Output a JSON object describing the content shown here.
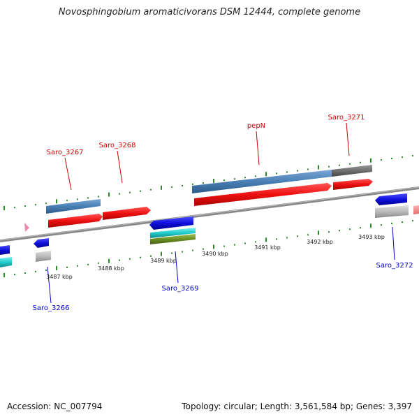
{
  "title": "Novosphingobium aromaticivorans DSM 12444, complete genome",
  "footer": {
    "accession": "Accession: NC_007794",
    "summary": "Topology: circular; Length: 3,561,584 bp; Genes: 3,397"
  },
  "scale_labels": [
    "3487 kbp",
    "3488 kbp",
    "3489 kbp",
    "3490 kbp",
    "3491 kbp",
    "3492 kbp",
    "3493 kbp"
  ],
  "gene_labels": {
    "forward": [
      "Saro_3267",
      "Saro_3268",
      "pepN",
      "Saro_3271"
    ],
    "reverse": [
      "Saro_3266",
      "Saro_3269",
      "Saro_3272"
    ]
  },
  "colors": {
    "forward_label": "#cc0000",
    "reverse_label": "#0000cc",
    "cds_forward": "#ee1111",
    "gene_forward": "#4a7fb5",
    "cds_reverse": "#1010dd",
    "gene_reverse": "#bbbbbb",
    "cyan_feature": "#22cccc",
    "olive_feature": "#6b8e23",
    "tick": "#2a8a2a",
    "backbone": "#888888"
  }
}
